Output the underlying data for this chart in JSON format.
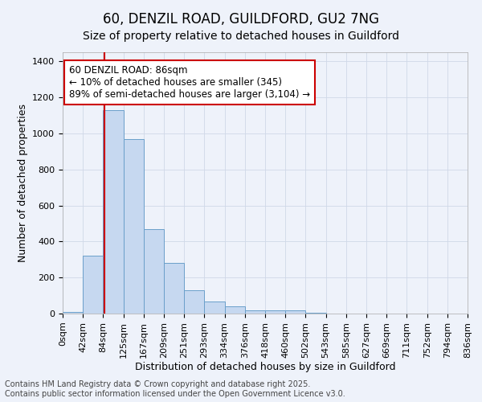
{
  "title1": "60, DENZIL ROAD, GUILDFORD, GU2 7NG",
  "title2": "Size of property relative to detached houses in Guildford",
  "xlabel": "Distribution of detached houses by size in Guildford",
  "ylabel": "Number of detached properties",
  "bin_labels": [
    "0sqm",
    "42sqm",
    "84sqm",
    "125sqm",
    "167sqm",
    "209sqm",
    "251sqm",
    "293sqm",
    "334sqm",
    "376sqm",
    "418sqm",
    "460sqm",
    "502sqm",
    "543sqm",
    "585sqm",
    "627sqm",
    "669sqm",
    "711sqm",
    "752sqm",
    "794sqm",
    "836sqm"
  ],
  "bar_values": [
    10,
    320,
    1130,
    970,
    470,
    280,
    130,
    65,
    42,
    20,
    20,
    20,
    5,
    0,
    0,
    0,
    0,
    0,
    0,
    0
  ],
  "bar_color": "#c6d8f0",
  "bar_edge_color": "#6a9fca",
  "background_color": "#eef2fa",
  "grid_color": "#d0d8e8",
  "annotation_text": "60 DENZIL ROAD: 86sqm\n← 10% of detached houses are smaller (345)\n89% of semi-detached houses are larger (3,104) →",
  "annotation_box_color": "#ffffff",
  "annotation_border_color": "#cc0000",
  "ylim": [
    0,
    1450
  ],
  "yticks": [
    0,
    200,
    400,
    600,
    800,
    1000,
    1200,
    1400
  ],
  "footer": "Contains HM Land Registry data © Crown copyright and database right 2025.\nContains public sector information licensed under the Open Government Licence v3.0.",
  "title1_fontsize": 12,
  "title2_fontsize": 10,
  "axis_label_fontsize": 9,
  "tick_fontsize": 8,
  "annotation_fontsize": 8.5,
  "footer_fontsize": 7
}
